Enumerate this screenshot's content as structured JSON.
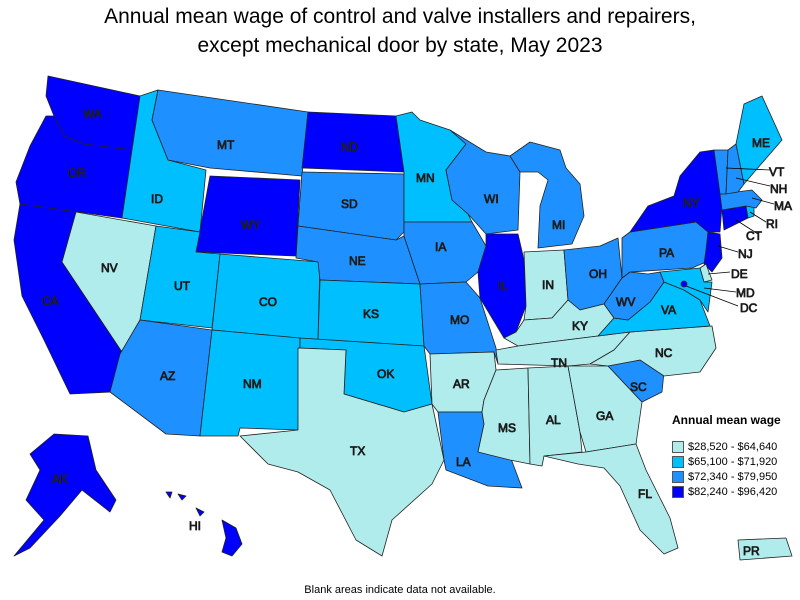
{
  "title_line1": "Annual mean wage of control and valve installers and repairers,",
  "title_line2": "except mechanical door by state, May 2023",
  "legend": {
    "title": "Annual mean wage",
    "items": [
      {
        "label": "$28,520 - $64,640",
        "color": "#b0ecec"
      },
      {
        "label": "$65,100 - $71,920",
        "color": "#00bfff"
      },
      {
        "label": "$72,340 - $79,950",
        "color": "#1e90ff"
      },
      {
        "label": "$82,240 - $96,420",
        "color": "#0000ff"
      }
    ]
  },
  "footnote": "Blank areas indicate data not available.",
  "states": {
    "WA": {
      "label": "WA",
      "tier": 4
    },
    "OR": {
      "label": "OR",
      "tier": 4
    },
    "CA": {
      "label": "CA",
      "tier": 4
    },
    "NV": {
      "label": "NV",
      "tier": 1
    },
    "ID": {
      "label": "ID",
      "tier": 2
    },
    "MT": {
      "label": "MT",
      "tier": 3
    },
    "WY": {
      "label": "WY",
      "tier": 4
    },
    "UT": {
      "label": "UT",
      "tier": 2
    },
    "CO": {
      "label": "CO",
      "tier": 2
    },
    "AZ": {
      "label": "AZ",
      "tier": 3
    },
    "NM": {
      "label": "NM",
      "tier": 2
    },
    "ND": {
      "label": "ND",
      "tier": 4
    },
    "SD": {
      "label": "SD",
      "tier": 3
    },
    "NE": {
      "label": "NE",
      "tier": 3
    },
    "KS": {
      "label": "KS",
      "tier": 2
    },
    "OK": {
      "label": "OK",
      "tier": 2
    },
    "TX": {
      "label": "TX",
      "tier": 1
    },
    "MN": {
      "label": "MN",
      "tier": 2
    },
    "IA": {
      "label": "IA",
      "tier": 3
    },
    "MO": {
      "label": "MO",
      "tier": 3
    },
    "AR": {
      "label": "AR",
      "tier": 1
    },
    "LA": {
      "label": "LA",
      "tier": 3
    },
    "WI": {
      "label": "WI",
      "tier": 3
    },
    "IL": {
      "label": "IL",
      "tier": 4
    },
    "MI": {
      "label": "MI",
      "tier": 3
    },
    "IN": {
      "label": "IN",
      "tier": 1
    },
    "OH": {
      "label": "OH",
      "tier": 3
    },
    "KY": {
      "label": "KY",
      "tier": 1
    },
    "TN": {
      "label": "TN",
      "tier": 1
    },
    "MS": {
      "label": "MS",
      "tier": 1
    },
    "AL": {
      "label": "AL",
      "tier": 1
    },
    "GA": {
      "label": "GA",
      "tier": 1
    },
    "FL": {
      "label": "FL",
      "tier": 1
    },
    "SC": {
      "label": "SC",
      "tier": 3
    },
    "NC": {
      "label": "NC",
      "tier": 1
    },
    "VA": {
      "label": "VA",
      "tier": 2
    },
    "WV": {
      "label": "WV",
      "tier": 3
    },
    "PA": {
      "label": "PA",
      "tier": 3
    },
    "NY": {
      "label": "NY",
      "tier": 4
    },
    "ME": {
      "label": "ME",
      "tier": 2
    },
    "VT": {
      "label": "VT",
      "tier": 3
    },
    "NH": {
      "label": "NH",
      "tier": 3
    },
    "MA": {
      "label": "MA",
      "tier": 3
    },
    "RI": {
      "label": "RI",
      "tier": 2
    },
    "CT": {
      "label": "CT",
      "tier": 4
    },
    "NJ": {
      "label": "NJ",
      "tier": 4
    },
    "DE": {
      "label": "DE",
      "tier": 1
    },
    "MD": {
      "label": "MD",
      "tier": 2
    },
    "DC": {
      "label": "DC",
      "tier": 4
    },
    "AK": {
      "label": "AK",
      "tier": 4
    },
    "HI": {
      "label": "HI",
      "tier": 4
    },
    "PR": {
      "label": "PR",
      "tier": 1
    }
  }
}
